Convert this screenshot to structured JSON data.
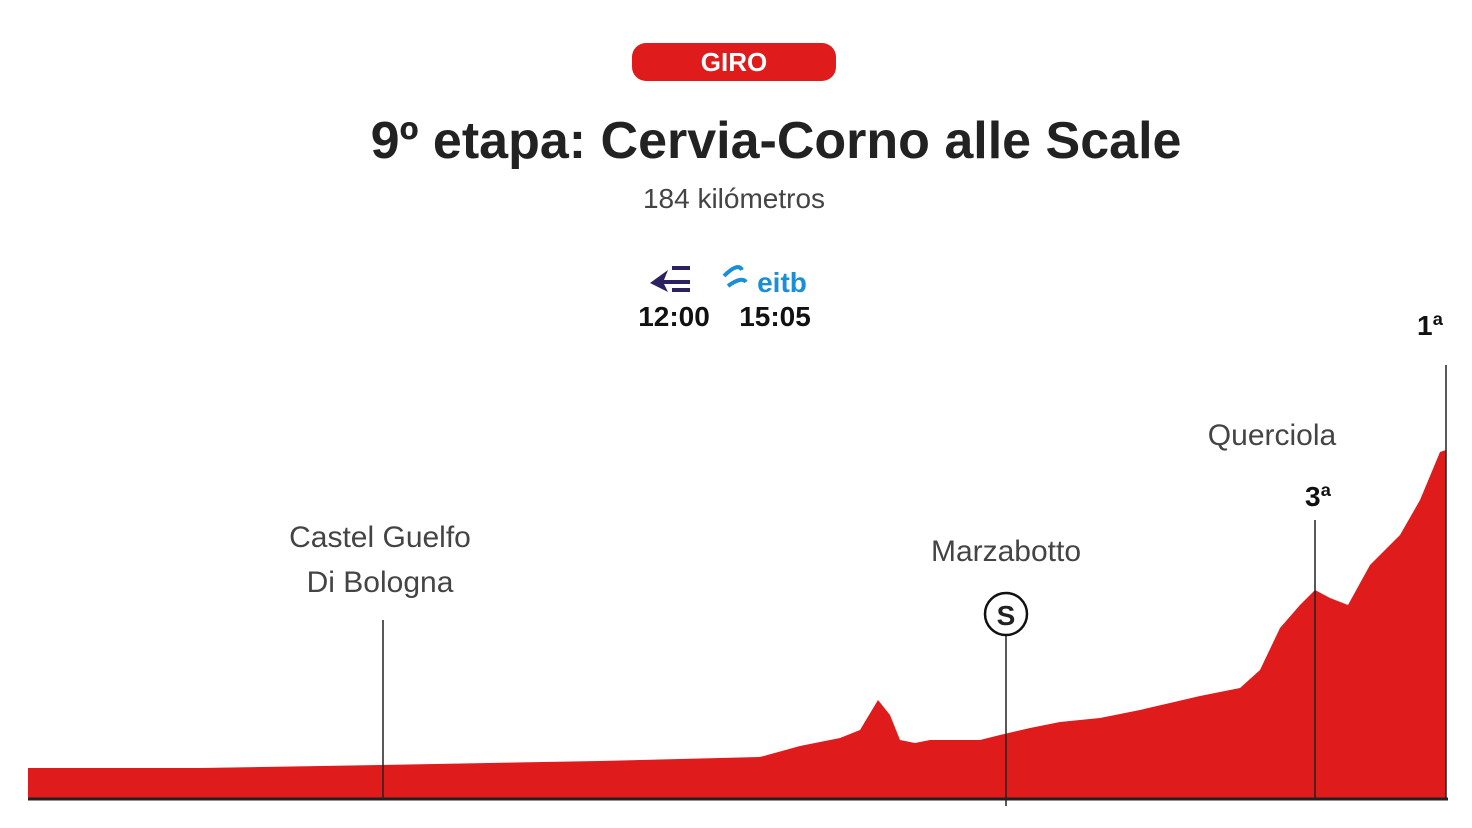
{
  "header": {
    "badge": "GIRO",
    "title": "9º etapa: Cervia-Corno alle Scale",
    "subtitle": "184 kilómetros"
  },
  "broadcast": [
    {
      "time": "12:00"
    },
    {
      "logo": "eitb",
      "time": "15:05"
    }
  ],
  "profile": {
    "points": [
      {
        "label": [
          "Castel Guelfo",
          "Di Bologna"
        ]
      },
      {
        "label": [
          "Marzabotto"
        ],
        "marker": "S"
      },
      {
        "label": [
          "Querciola"
        ],
        "category": "3ª"
      },
      {
        "category": "1ª"
      }
    ]
  }
}
